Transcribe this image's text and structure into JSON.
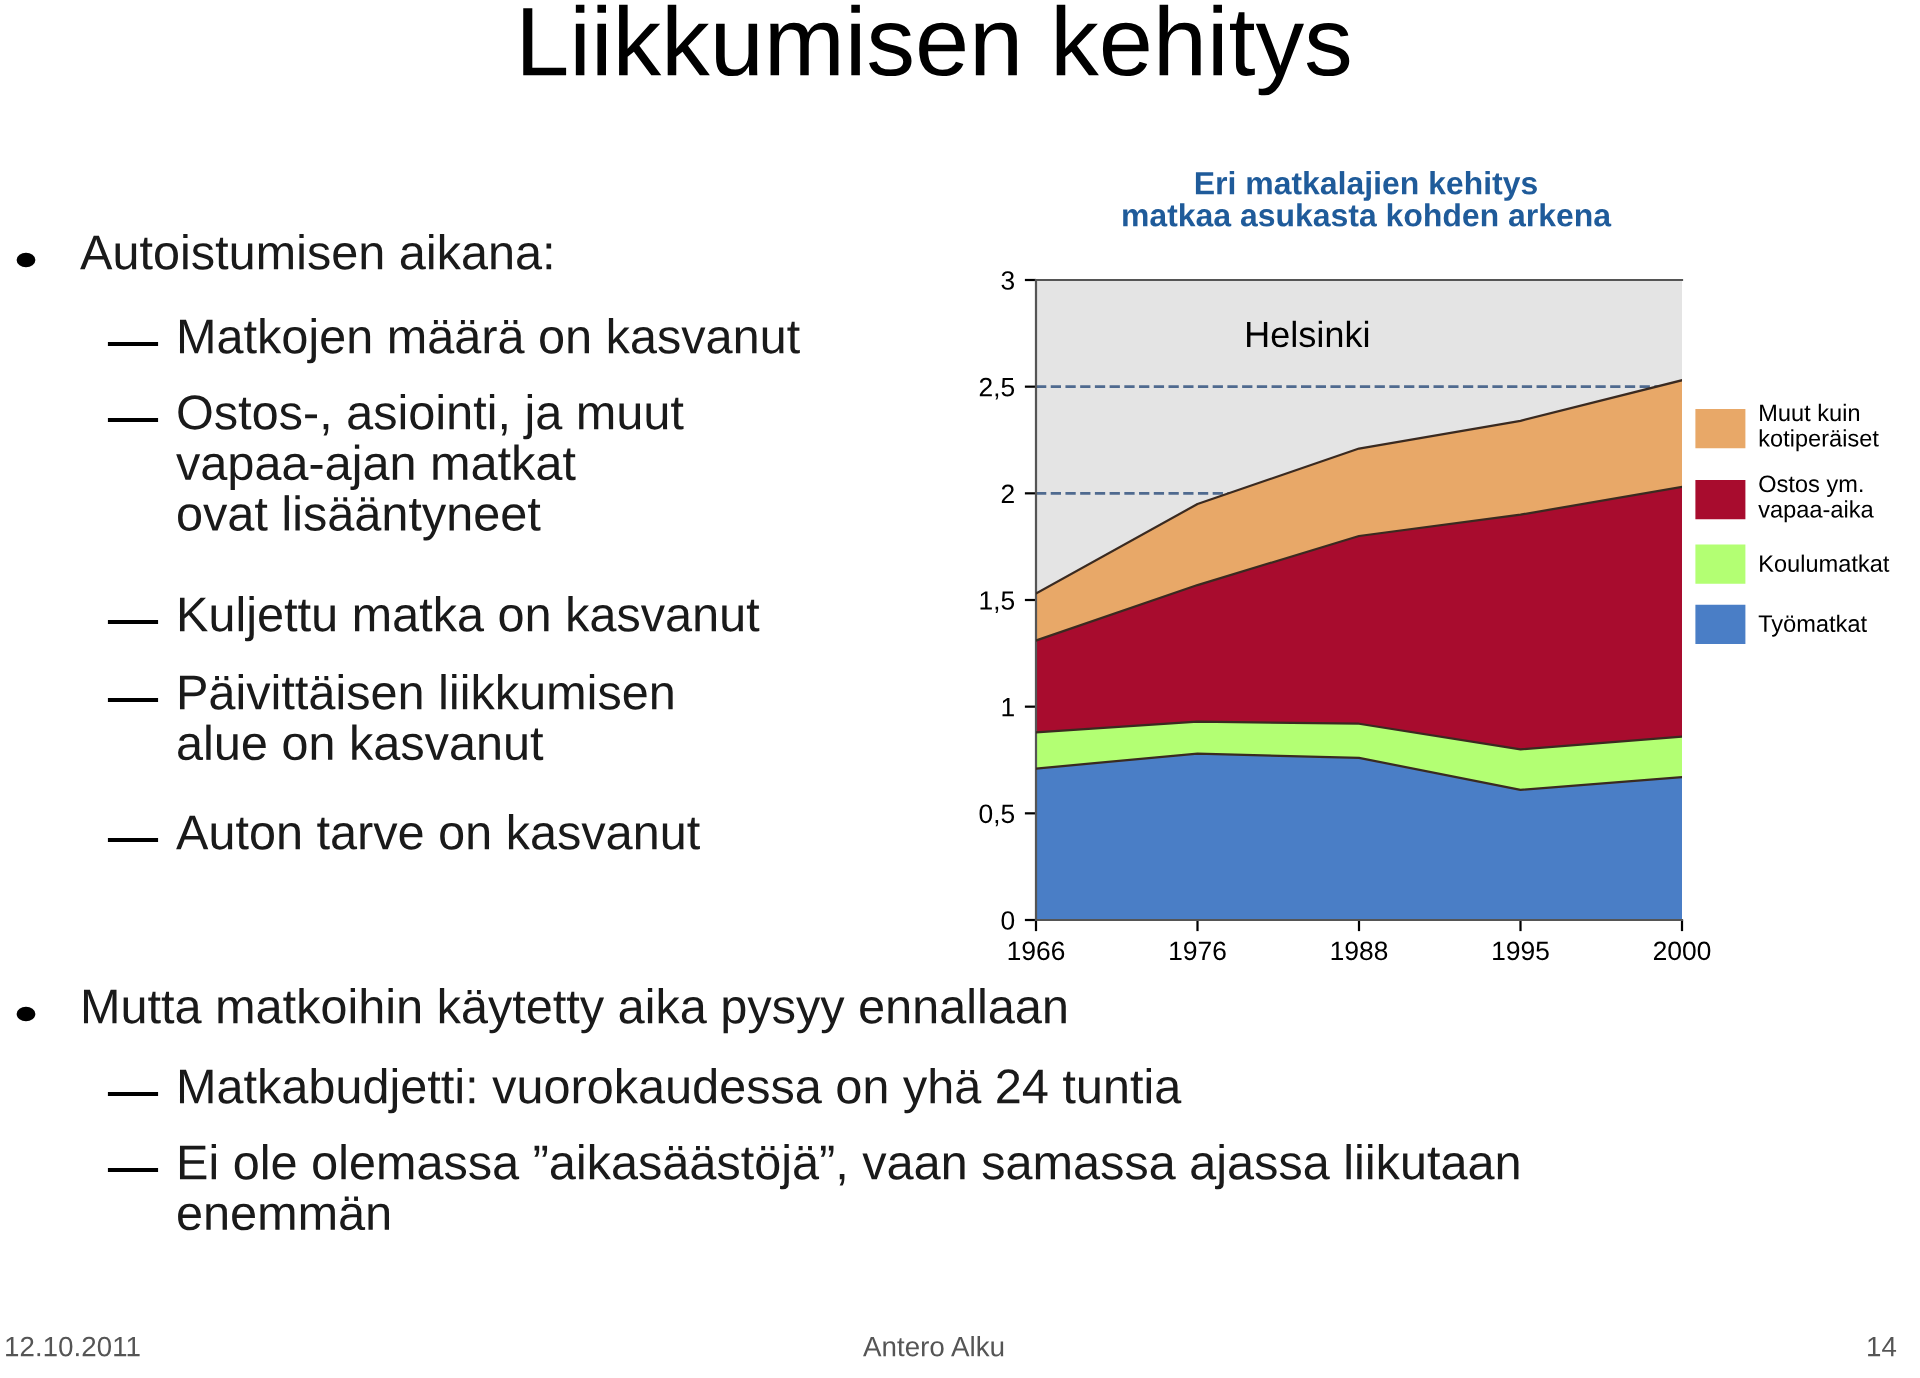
{
  "chart_data": {
    "type": "area",
    "stacked": true,
    "title": "Liikkumisen kehitys",
    "subtitle": "Eri matkalajien kehitys\nmatkaa asukasta kohden arkena",
    "categories": [
      "1966",
      "1976",
      "1988",
      "1995",
      "2000"
    ],
    "series": [
      {
        "name": "Työmatkat",
        "color": "#4a7ec6",
        "values": [
          0.71,
          0.78,
          0.76,
          0.61,
          0.67
        ]
      },
      {
        "name": "Koulumatkat",
        "color": "#b3ff73",
        "values": [
          0.17,
          0.15,
          0.16,
          0.19,
          0.19
        ]
      },
      {
        "name": "Ostos ym.\nvapaa-aika",
        "color": "#a80c2e",
        "values": [
          0.43,
          0.64,
          0.88,
          1.1,
          1.17
        ]
      },
      {
        "name": "Muut kuin\nkotiperäiset",
        "color": "#e8a868",
        "values": [
          0.22,
          0.38,
          0.41,
          0.44,
          0.5
        ]
      }
    ],
    "ylim": [
      0,
      3
    ],
    "yticks": [
      0,
      {
        "value": 0.5,
        "label": "0,5"
      },
      1,
      {
        "value": 1.5,
        "label": "1,5"
      },
      2,
      {
        "value": 2.5,
        "label": "2,5"
      },
      3
    ],
    "ref_lines": [
      {
        "axis": "y",
        "value": 2.5,
        "color": "#4f6a8f",
        "line_style": "dashed"
      },
      {
        "axis": "y",
        "value": 2,
        "color": "#4f6a8f",
        "line_style": "dashed"
      }
    ],
    "legend": "right",
    "annotations": [
      "Helsinki",
      "Autoistumisen aikana:",
      "Matkojen määrä on kasvanut",
      "Ostos-, asiointi, ja muut\nvapaa-ajan matkat\novat lisääntyneet",
      "Kuljettu matka on kasvanut",
      "Päivittäisen liikkumisen\nalue on kasvanut",
      "Auton tarve on kasvanut",
      "Mutta matkoihin käytetty aika pysyy ennallaan",
      "Matkabudjetti: vuorokaudessa on yhä 24 tuntia",
      "Ei ole olemassa ”aikasäästöjä”, vaan samassa ajassa liikutaan\nenemmän",
      "12.10.2011",
      "Antero Alku",
      "14"
    ]
  }
}
